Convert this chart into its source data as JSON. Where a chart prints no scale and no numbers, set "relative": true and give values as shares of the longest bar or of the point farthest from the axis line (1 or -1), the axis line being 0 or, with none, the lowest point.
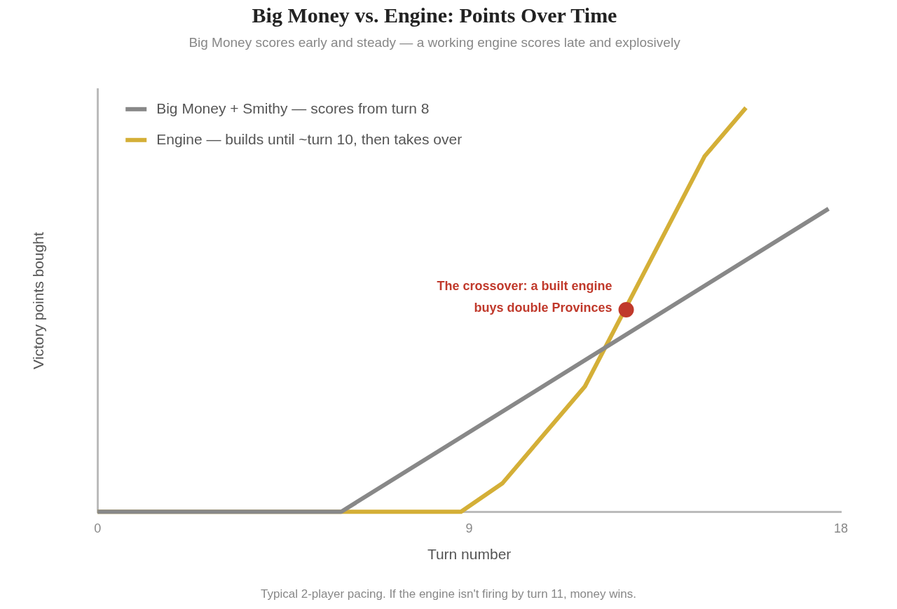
{
  "chart_data": {
    "type": "line",
    "title": "Big Money vs. Engine: Points Over Time",
    "subtitle": "Big Money scores early and steady — a working engine scores late and explosively",
    "xlabel": "Turn number",
    "ylabel": "Victory points bought",
    "relative": true,
    "xlim": [
      0,
      18
    ],
    "xticks": [
      0,
      9,
      18
    ],
    "grid": false,
    "legend": "top left",
    "marker": "none",
    "line_style": "solid",
    "series": [
      {
        "name": "Big Money + Smithy — scores from turn 8",
        "color": "#888888",
        "x": [
          0,
          5.9,
          17.7
        ],
        "values": [
          0,
          0,
          0.75
        ]
      },
      {
        "name": "Engine — builds until ~turn 10, then takes over",
        "color": "#d4af37",
        "x": [
          0,
          8.8,
          9.8,
          11.8,
          14.7,
          15.7
        ],
        "values": [
          0,
          0,
          0.07,
          0.31,
          0.88,
          1
        ]
      }
    ],
    "annotations": [
      {
        "text": "The crossover: a built engine\nbuys double Provinces",
        "x": 12.8,
        "y": 0.5
      },
      "Typical 2-player pacing. If the engine isn't firing by turn 11, money wins."
    ]
  }
}
